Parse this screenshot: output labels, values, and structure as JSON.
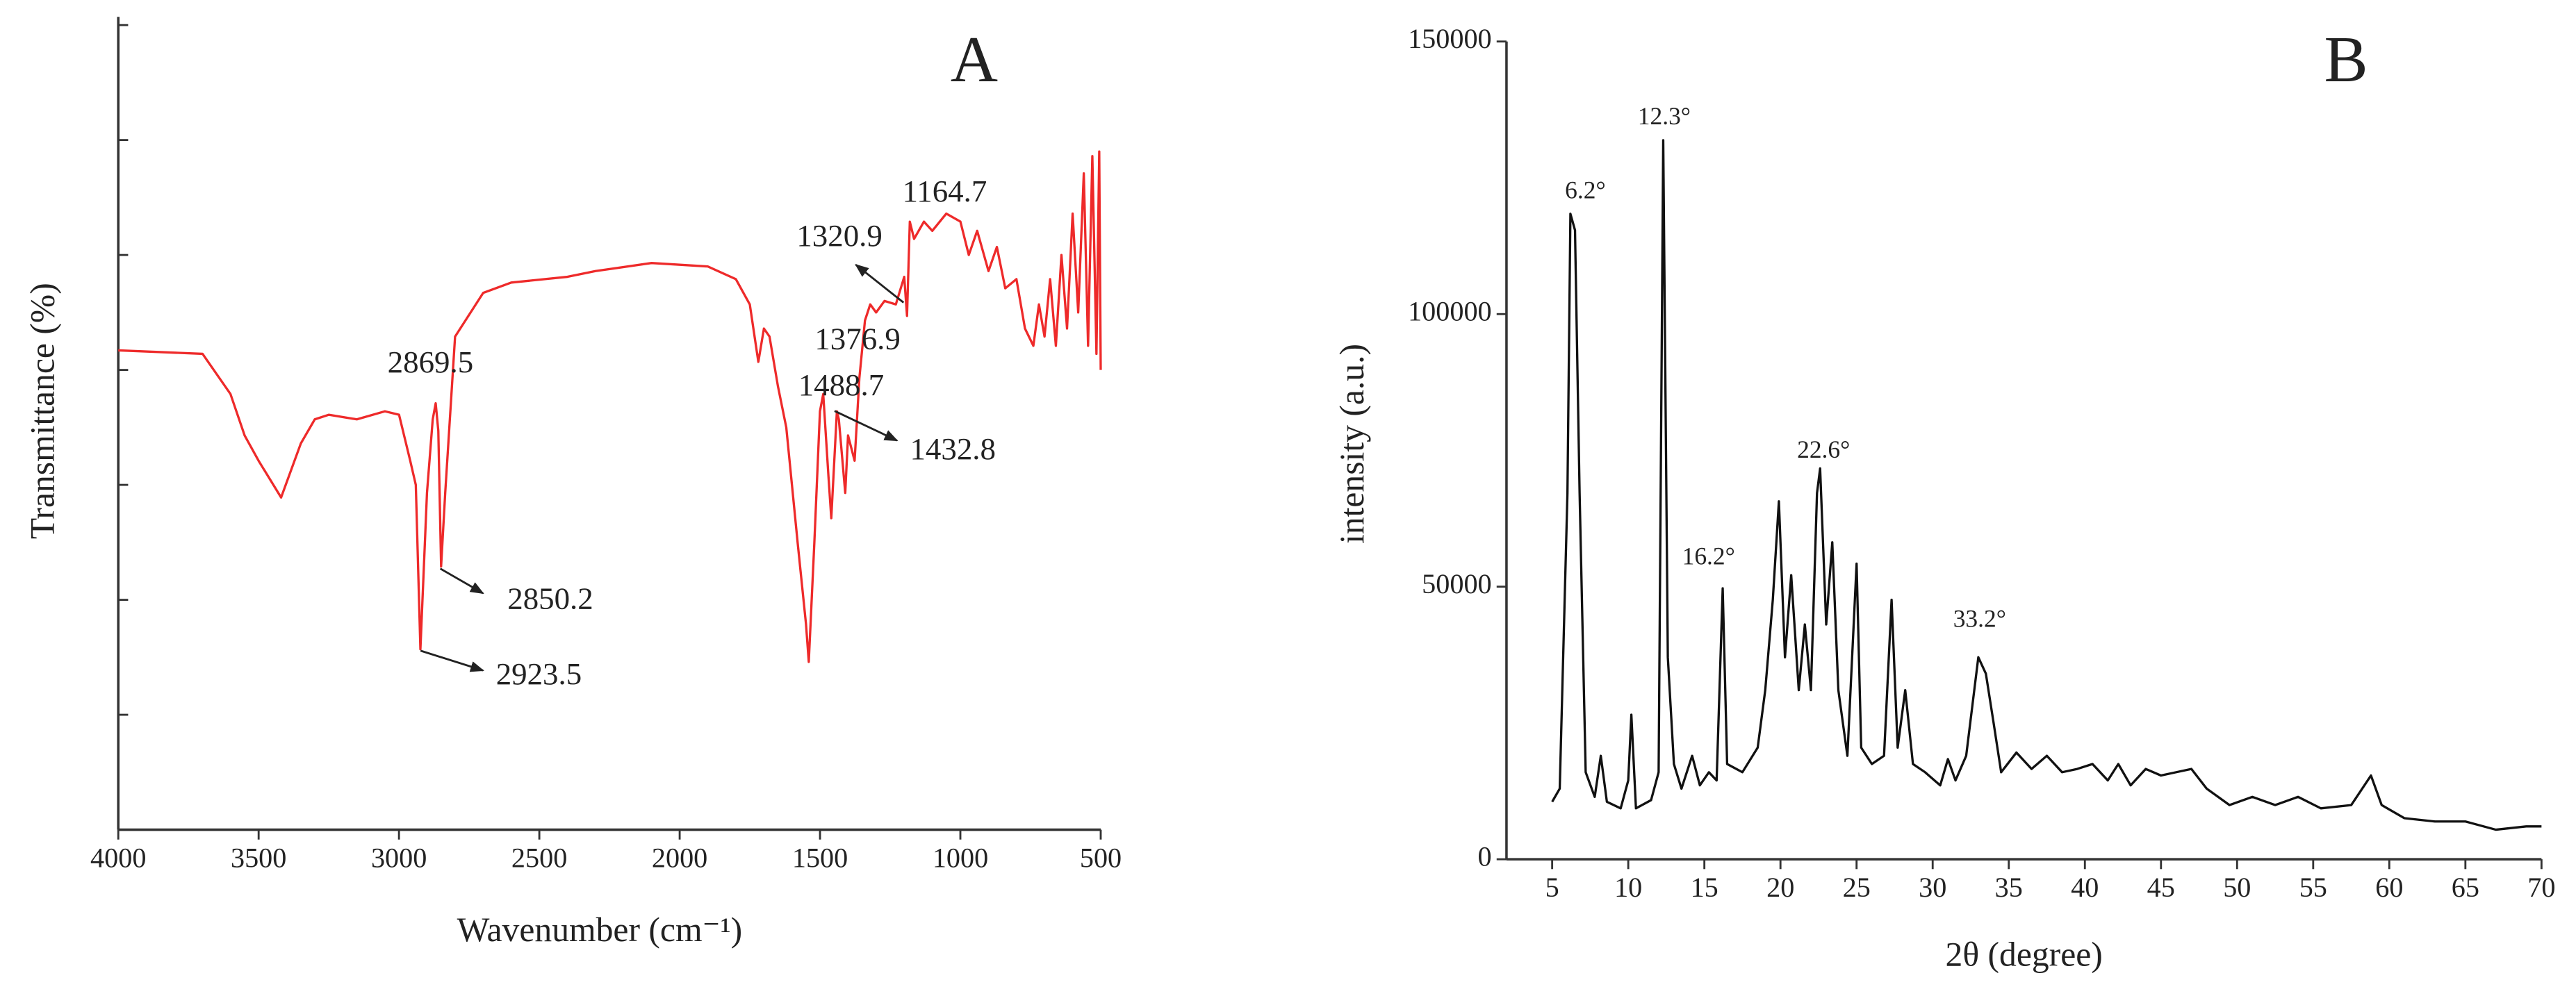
{
  "chart_data": [
    {
      "type": "line",
      "title": "A",
      "xlabel": "Wavenumber (cm⁻¹)",
      "ylabel": "Transmittance (%)",
      "color": "#ee2a2a",
      "xlim": [
        4000,
        500
      ],
      "xticks": [
        4000,
        3500,
        3000,
        2500,
        2000,
        1500,
        1000,
        500
      ],
      "ylim": [
        0,
        7
      ],
      "yticks": [
        1,
        2,
        3,
        4,
        5,
        6,
        7
      ],
      "x": [
        4000,
        3700,
        3600,
        3550,
        3500,
        3420,
        3350,
        3300,
        3250,
        3150,
        3050,
        3000,
        2960,
        2940,
        2923.5,
        2900,
        2880,
        2869.5,
        2860,
        2850.2,
        2835,
        2800,
        2700,
        2600,
        2400,
        2300,
        2100,
        1900,
        1800,
        1750,
        1720,
        1700,
        1680,
        1650,
        1620,
        1580,
        1550,
        1540,
        1520,
        1500,
        1488.7,
        1470,
        1460,
        1440,
        1432.8,
        1410,
        1400,
        1376.9,
        1360,
        1340,
        1320.9,
        1300,
        1270,
        1230,
        1200,
        1190,
        1180,
        1164.7,
        1130,
        1100,
        1050,
        1000,
        970,
        940,
        900,
        870,
        840,
        800,
        770,
        740,
        720,
        700,
        680,
        660,
        640,
        620,
        600,
        580,
        560,
        545,
        530,
        515,
        505,
        500
      ],
      "values": [
        4.17,
        4.14,
        3.79,
        3.43,
        3.21,
        2.89,
        3.36,
        3.57,
        3.61,
        3.57,
        3.64,
        3.61,
        3.21,
        3.0,
        1.57,
        2.93,
        3.57,
        3.71,
        3.47,
        2.29,
        2.93,
        4.29,
        4.67,
        4.76,
        4.81,
        4.86,
        4.93,
        4.9,
        4.79,
        4.57,
        4.07,
        4.36,
        4.29,
        3.86,
        3.5,
        2.5,
        1.79,
        1.46,
        2.5,
        3.64,
        3.79,
        3.07,
        2.71,
        3.64,
        3.57,
        2.93,
        3.43,
        3.21,
        3.93,
        4.43,
        4.57,
        4.5,
        4.6,
        4.57,
        4.81,
        4.47,
        5.29,
        5.14,
        5.29,
        5.21,
        5.36,
        5.29,
        5.0,
        5.21,
        4.86,
        5.07,
        4.71,
        4.79,
        4.36,
        4.21,
        4.57,
        4.29,
        4.79,
        4.21,
        5.0,
        4.36,
        5.36,
        4.5,
        5.71,
        4.21,
        5.86,
        4.14,
        5.9,
        4.0
      ],
      "annotations": [
        "2869.5",
        "2850.2",
        "2923.5",
        "1488.7",
        "1376.9",
        "1432.8",
        "1320.9",
        "1164.7"
      ]
    },
    {
      "type": "line",
      "title": "B",
      "xlabel": "2θ (degree)",
      "ylabel": "intensity (a.u.)",
      "color": "#111111",
      "xlim": [
        2,
        70
      ],
      "xticks": [
        5,
        10,
        15,
        20,
        25,
        30,
        35,
        40,
        45,
        50,
        55,
        60,
        65,
        70
      ],
      "ylim": [
        0,
        150000
      ],
      "yticks": [
        0,
        50000,
        100000,
        150000
      ],
      "x": [
        5.0,
        5.5,
        6.0,
        6.2,
        6.5,
        6.8,
        7.2,
        7.8,
        8.2,
        8.6,
        9.5,
        10.0,
        10.2,
        10.5,
        11.5,
        12.0,
        12.3,
        12.6,
        13.0,
        13.5,
        14.2,
        14.7,
        15.3,
        15.8,
        16.2,
        16.5,
        17.5,
        18.5,
        19.0,
        19.5,
        19.9,
        20.3,
        20.7,
        21.2,
        21.6,
        22.0,
        22.4,
        22.6,
        23.0,
        23.4,
        23.8,
        24.4,
        25.0,
        25.3,
        26.0,
        26.8,
        27.3,
        27.7,
        28.2,
        28.7,
        29.5,
        30.5,
        31.0,
        31.5,
        32.2,
        33.0,
        33.5,
        34.0,
        34.5,
        35.5,
        36.5,
        37.5,
        38.5,
        39.5,
        40.5,
        41.5,
        42.2,
        43.0,
        44.0,
        45.0,
        46.0,
        47.0,
        48.0,
        49.5,
        51.0,
        52.5,
        54.0,
        55.5,
        57.5,
        58.8,
        59.5,
        61.0,
        63.0,
        65.0,
        67.0,
        69.0,
        70.0
      ],
      "values": [
        10540,
        12950,
        67170,
        118400,
        115400,
        67170,
        15960,
        11450,
        18980,
        10540,
        9340,
        14460,
        26510,
        9340,
        10840,
        15960,
        131900,
        37050,
        17470,
        12950,
        18980,
        13550,
        15960,
        14460,
        49700,
        17470,
        15960,
        20480,
        31020,
        47590,
        65660,
        37050,
        52110,
        31020,
        43070,
        31020,
        67170,
        71680,
        43070,
        58130,
        31020,
        18980,
        54220,
        20480,
        17470,
        18980,
        47590,
        20480,
        31020,
        17470,
        15960,
        13550,
        18370,
        14460,
        18980,
        37050,
        34040,
        25000,
        15960,
        19580,
        16570,
        18980,
        15960,
        16570,
        17470,
        14460,
        17470,
        13550,
        16570,
        15360,
        15960,
        16570,
        12950,
        9940,
        11450,
        9940,
        11450,
        9340,
        9940,
        15360,
        9940,
        7530,
        6930,
        6930,
        5420,
        6020,
        6020
      ],
      "annotations": [
        "6.2°",
        "12.3°",
        "16.2°",
        "22.6°",
        "33.2°"
      ]
    }
  ]
}
